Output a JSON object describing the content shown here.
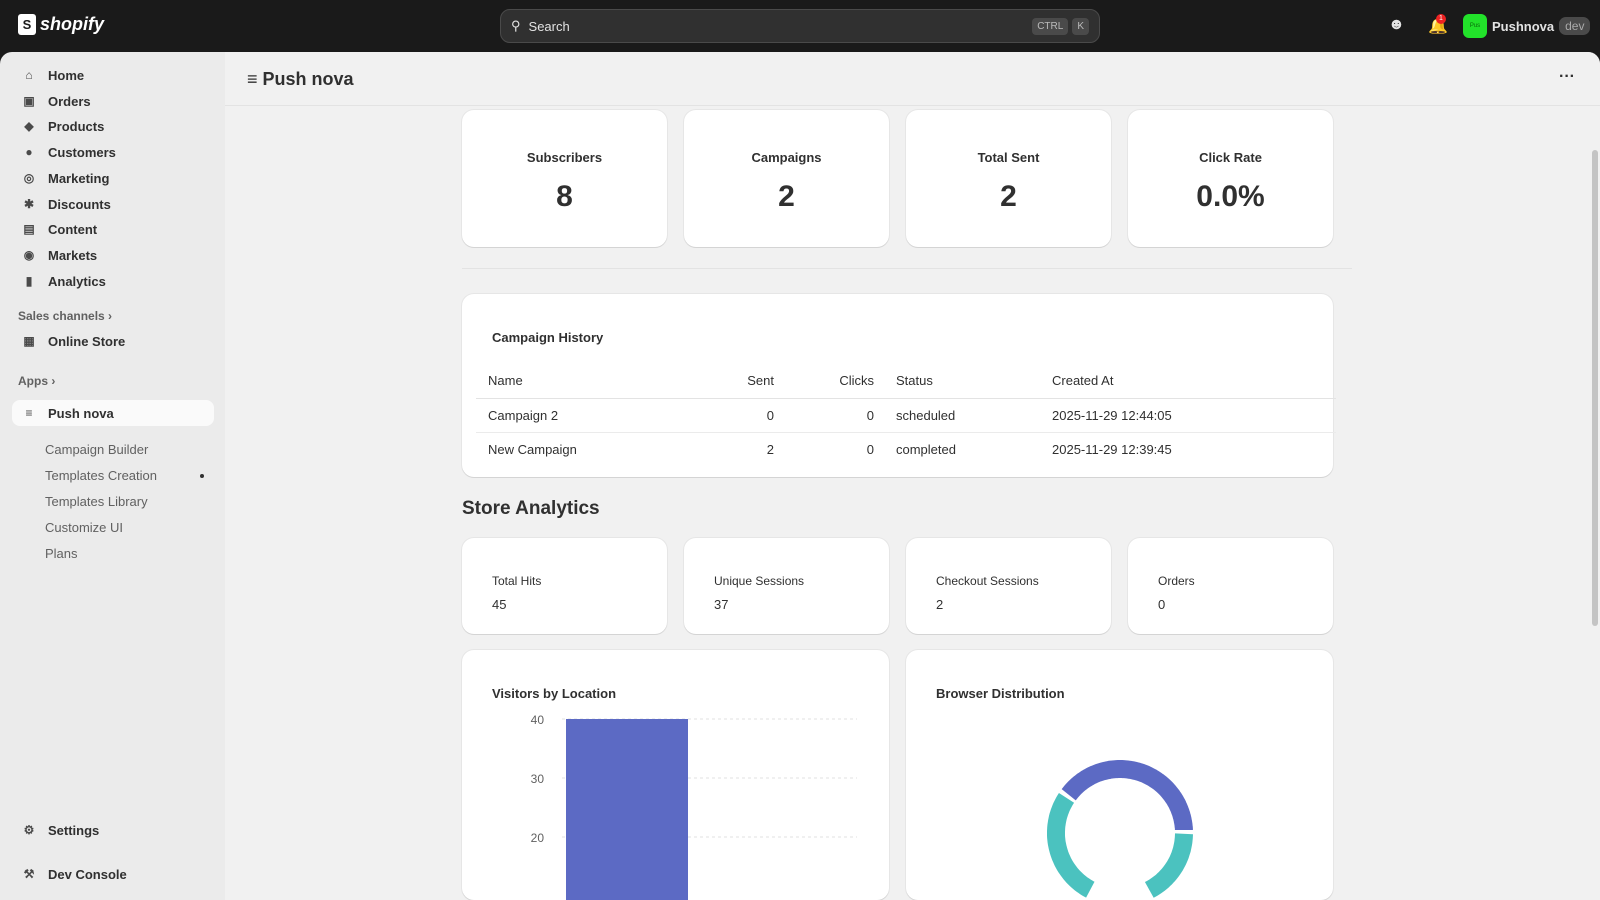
{
  "topbar": {
    "brand": "shopify",
    "search_placeholder": "Search",
    "kbd": [
      "CTRL",
      "K"
    ],
    "notification_count": "1",
    "avatar_initials": "Pus",
    "store_name": "Pushnova",
    "env_badge": "dev"
  },
  "sidebar": {
    "items": [
      {
        "label": "Home",
        "icon": "home-icon"
      },
      {
        "label": "Orders",
        "icon": "inbox-icon"
      },
      {
        "label": "Products",
        "icon": "tag-icon"
      },
      {
        "label": "Customers",
        "icon": "person-icon"
      },
      {
        "label": "Marketing",
        "icon": "target-icon"
      },
      {
        "label": "Discounts",
        "icon": "discount-icon"
      },
      {
        "label": "Content",
        "icon": "image-icon"
      },
      {
        "label": "Markets",
        "icon": "globe-icon"
      },
      {
        "label": "Analytics",
        "icon": "bar-chart-icon"
      }
    ],
    "sales_channels": "Sales channels",
    "online_store": "Online Store",
    "apps": "Apps",
    "app_active": "Push nova",
    "app_subitems": [
      "Campaign Builder",
      "Templates Creation",
      "Templates Library",
      "Customize UI",
      "Plans"
    ],
    "settings": "Settings",
    "dev_console": "Dev Console"
  },
  "page": {
    "title": "Push nova"
  },
  "stats": [
    {
      "label": "Subscribers",
      "value": "8"
    },
    {
      "label": "Campaigns",
      "value": "2"
    },
    {
      "label": "Total Sent",
      "value": "2"
    },
    {
      "label": "Click Rate",
      "value": "0.0%"
    }
  ],
  "campaign_history": {
    "title": "Campaign History",
    "columns": [
      "Name",
      "Sent",
      "Clicks",
      "Status",
      "Created At"
    ],
    "rows": [
      [
        "Campaign 2",
        "0",
        "0",
        "scheduled",
        "2025-11-29 12:44:05"
      ],
      [
        "New Campaign",
        "2",
        "0",
        "completed",
        "2025-11-29 12:39:45"
      ]
    ]
  },
  "store_analytics": {
    "title": "Store Analytics",
    "metrics": [
      {
        "label": "Total Hits",
        "value": "45"
      },
      {
        "label": "Unique Sessions",
        "value": "37"
      },
      {
        "label": "Checkout Sessions",
        "value": "2"
      },
      {
        "label": "Orders",
        "value": "0"
      }
    ]
  },
  "chart_data": [
    {
      "type": "bar",
      "title": "Visitors by Location",
      "yticks": [
        "40",
        "30",
        "20"
      ],
      "values": [
        40
      ],
      "ylim": [
        0,
        40
      ],
      "grid": true,
      "colors": [
        "#5c6ac4"
      ]
    },
    {
      "type": "pie",
      "title": "Browser Distribution",
      "values": [
        40,
        60
      ],
      "colors": [
        "#5c6ac4",
        "#4bc2bf"
      ],
      "donut": true
    }
  ]
}
